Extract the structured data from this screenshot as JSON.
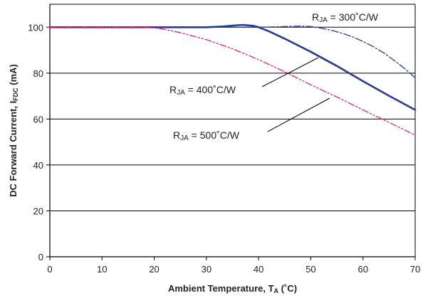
{
  "chart_data": {
    "type": "line",
    "xlabel": {
      "main": "Ambient Temperature, T",
      "sub": "A",
      "tail": " (˚C)"
    },
    "ylabel": {
      "main": "DC Forward Current, I",
      "sub": "FDC",
      "tail": " (mA)"
    },
    "xlim": [
      0,
      70
    ],
    "ylim": [
      0,
      110
    ],
    "xticks": [
      "0",
      "10",
      "20",
      "30",
      "40",
      "50",
      "60",
      "70"
    ],
    "yticks": [
      "0",
      "20",
      "40",
      "60",
      "80",
      "100"
    ],
    "grid": "horizontal",
    "series": [
      {
        "name": {
          "main": "R",
          "sub": "JA",
          "tail": " = 300˚C/W"
        },
        "style": "dashdot",
        "color": "#1f3a93",
        "x": [
          0,
          40,
          42,
          44,
          46,
          48,
          50,
          52,
          54,
          56,
          58,
          60,
          62,
          64,
          66,
          68,
          70
        ],
        "y": [
          100,
          100,
          100.1,
          100.2,
          100.4,
          100.5,
          100.3,
          99.6,
          98.6,
          97.4,
          95.8,
          93.8,
          91.5,
          88.8,
          85.5,
          82,
          78
        ]
      },
      {
        "name": {
          "main": "R",
          "sub": "JA",
          "tail": " = 400˚C/W"
        },
        "style": "solid",
        "color": "#2a3a8f",
        "x": [
          0,
          30,
          33,
          35,
          37,
          39,
          40,
          42,
          45,
          50,
          55,
          60,
          65,
          70
        ],
        "y": [
          100,
          100,
          100.3,
          100.7,
          101,
          100.6,
          100,
          98.2,
          95,
          89.3,
          83.1,
          76.5,
          70.1,
          64
        ]
      },
      {
        "name": {
          "main": "R",
          "sub": "JA",
          "tail": " = 500˚C/W"
        },
        "style": "dashdotdot",
        "color": "#e0207a",
        "x": [
          0,
          18,
          20,
          22,
          25,
          30,
          35,
          40,
          45,
          50,
          55,
          60,
          65,
          70
        ],
        "y": [
          100,
          100,
          99.7,
          99.1,
          97.6,
          94.6,
          90.6,
          85.9,
          80.6,
          74.9,
          69.6,
          64,
          58.5,
          53
        ]
      }
    ]
  }
}
